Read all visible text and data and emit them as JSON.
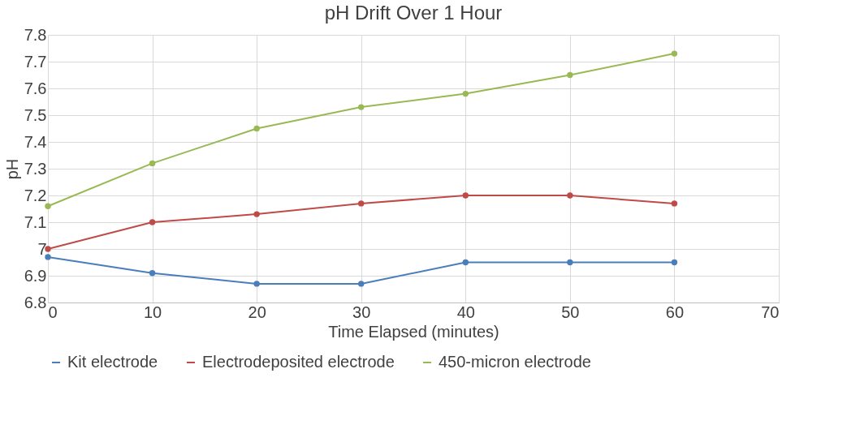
{
  "chart_data": {
    "type": "line",
    "title": "pH Drift Over 1 Hour",
    "xlabel": "Time Elapsed (minutes)",
    "ylabel": "pH",
    "x": [
      0,
      10,
      20,
      30,
      40,
      50,
      60
    ],
    "series": [
      {
        "name": "Kit electrode",
        "color": "#4a7ebb",
        "values": [
          6.97,
          6.91,
          6.87,
          6.87,
          6.95,
          6.95,
          6.95
        ]
      },
      {
        "name": "Electrodeposited electrode",
        "color": "#be4b48",
        "values": [
          7.0,
          7.1,
          7.13,
          7.17,
          7.2,
          7.2,
          7.17
        ]
      },
      {
        "name": "450-micron electrode",
        "color": "#98b954",
        "values": [
          7.16,
          7.32,
          7.45,
          7.53,
          7.58,
          7.65,
          7.73
        ]
      }
    ],
    "xlim": [
      0,
      70
    ],
    "xticks": [
      0,
      10,
      20,
      30,
      40,
      50,
      60,
      70
    ],
    "ylim": [
      6.8,
      7.8
    ],
    "yticks": [
      6.8,
      6.9,
      7,
      7.1,
      7.2,
      7.3,
      7.4,
      7.5,
      7.6,
      7.7,
      7.8
    ],
    "grid": true,
    "legend": "bottom",
    "marker": "circle",
    "line_style": "solid"
  }
}
